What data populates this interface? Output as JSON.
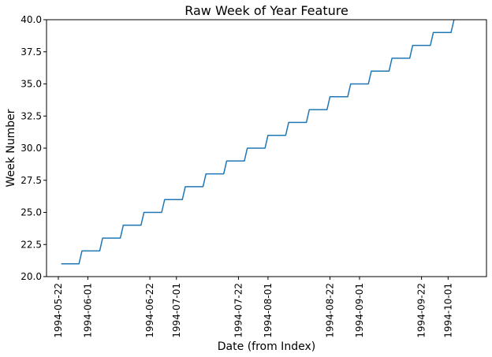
{
  "chart_data": {
    "type": "line",
    "title": "Raw Week of Year Feature",
    "xlabel": "Date (from Index)",
    "ylabel": "Week Number",
    "xlim": [
      "1994-05-18",
      "1994-10-14"
    ],
    "ylim": [
      20.0,
      40.0
    ],
    "x_ticks": [
      "1994-05-22",
      "1994-06-01",
      "1994-06-22",
      "1994-07-01",
      "1994-07-22",
      "1994-08-01",
      "1994-08-22",
      "1994-09-01",
      "1994-09-22",
      "1994-10-01"
    ],
    "y_ticks": [
      "20.0",
      "22.5",
      "25.0",
      "27.5",
      "30.0",
      "32.5",
      "35.0",
      "37.5",
      "40.0"
    ],
    "grid": false,
    "series": [
      {
        "color": "#1f77b4",
        "x": [
          "1994-05-23",
          "1994-05-29",
          "1994-05-30",
          "1994-06-05",
          "1994-06-06",
          "1994-06-12",
          "1994-06-13",
          "1994-06-19",
          "1994-06-20",
          "1994-06-26",
          "1994-06-27",
          "1994-07-03",
          "1994-07-04",
          "1994-07-10",
          "1994-07-11",
          "1994-07-17",
          "1994-07-18",
          "1994-07-24",
          "1994-07-25",
          "1994-07-31",
          "1994-08-01",
          "1994-08-07",
          "1994-08-08",
          "1994-08-14",
          "1994-08-15",
          "1994-08-21",
          "1994-08-22",
          "1994-08-28",
          "1994-08-29",
          "1994-09-04",
          "1994-09-05",
          "1994-09-11",
          "1994-09-12",
          "1994-09-18",
          "1994-09-19",
          "1994-09-25",
          "1994-09-26",
          "1994-10-02",
          "1994-10-03"
        ],
        "y": [
          21,
          21,
          22,
          22,
          23,
          23,
          24,
          24,
          25,
          25,
          26,
          26,
          27,
          27,
          28,
          28,
          29,
          29,
          30,
          30,
          31,
          31,
          32,
          32,
          33,
          33,
          34,
          34,
          35,
          35,
          36,
          36,
          37,
          37,
          38,
          38,
          39,
          39,
          40
        ]
      }
    ]
  }
}
